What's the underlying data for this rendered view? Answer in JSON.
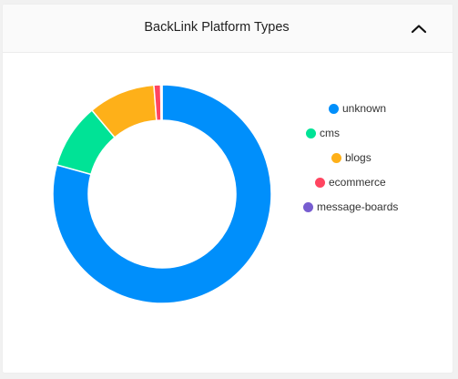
{
  "card": {
    "title": "BackLink Platform Types",
    "collapse_icon": "chevron-up-icon"
  },
  "chart_data": {
    "type": "pie",
    "donut": true,
    "title": "BackLink Platform Types",
    "categories": [
      "unknown",
      "cms",
      "blogs",
      "ecommerce",
      "message-boards"
    ],
    "values": [
      79.3,
      9.6,
      9.9,
      1.0,
      0.2
    ],
    "unit": "%",
    "legend_position": "right",
    "colors": [
      "#008FFB",
      "#00E396",
      "#FEB019",
      "#FF4560",
      "#775DD0"
    ]
  }
}
